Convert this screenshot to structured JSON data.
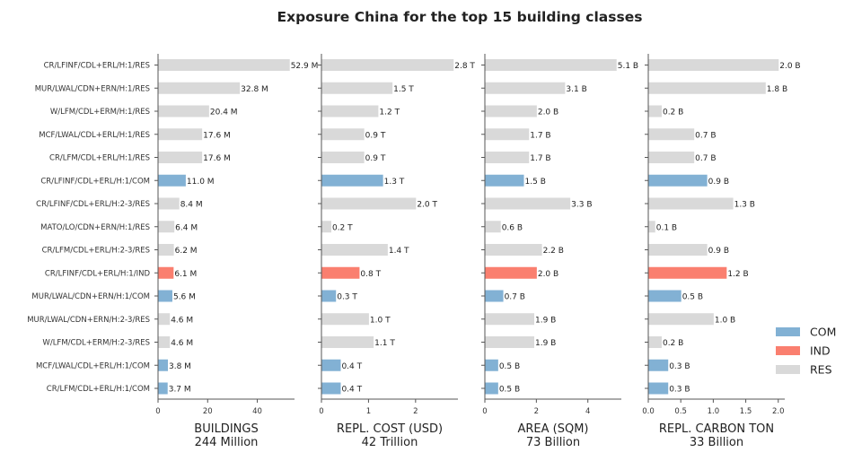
{
  "title": "Exposure China for the top 15 building classes",
  "colors": {
    "COM": "#82b1d4",
    "IND": "#fa7f6f",
    "RES": "#d9d9d9"
  },
  "legend": {
    "placement": "right",
    "items": [
      {
        "key": "COM",
        "label": "COM"
      },
      {
        "key": "IND",
        "label": "IND"
      },
      {
        "key": "RES",
        "label": "RES"
      }
    ]
  },
  "chart_data": {
    "type": "bar",
    "orientation": "horizontal",
    "categories": [
      "CR/LFINF/CDL+ERL/H:1/RES",
      "MUR/LWAL/CDN+ERN/H:1/RES",
      "W/LFM/CDL+ERM/H:1/RES",
      "MCF/LWAL/CDL+ERL/H:1/RES",
      "CR/LFM/CDL+ERL/H:1/RES",
      "CR/LFINF/CDL+ERL/H:1/COM",
      "CR/LFINF/CDL+ERL/H:2-3/RES",
      "MATO/LO/CDN+ERN/H:1/RES",
      "CR/LFM/CDL+ERL/H:2-3/RES",
      "CR/LFINF/CDL+ERL/H:1/IND",
      "MUR/LWAL/CDN+ERN/H:1/COM",
      "MUR/LWAL/CDN+ERN/H:2-3/RES",
      "W/LFM/CDL+ERM/H:2-3/RES",
      "MCF/LWAL/CDL+ERL/H:1/COM",
      "CR/LFM/CDL+ERL/H:1/COM"
    ],
    "occupancy": [
      "RES",
      "RES",
      "RES",
      "RES",
      "RES",
      "COM",
      "RES",
      "RES",
      "RES",
      "IND",
      "COM",
      "RES",
      "RES",
      "COM",
      "COM"
    ],
    "panels": [
      {
        "xlabel": "BUILDINGS",
        "total": "244 Million",
        "xlim": [
          0,
          55
        ],
        "ticks": [
          0,
          20,
          40
        ],
        "tick_labels": [
          "0",
          "20",
          "40"
        ],
        "values": [
          52.9,
          32.8,
          20.4,
          17.6,
          17.6,
          11.0,
          8.4,
          6.4,
          6.2,
          6.1,
          5.6,
          4.6,
          4.6,
          3.8,
          3.7
        ],
        "labels": [
          "52.9 M",
          "32.8 M",
          "20.4 M",
          "17.6 M",
          "17.6 M",
          "11.0 M",
          "8.4 M",
          "6.4 M",
          "6.2 M",
          "6.1 M",
          "5.6 M",
          "4.6 M",
          "4.6 M",
          "3.8 M",
          "3.7 M"
        ]
      },
      {
        "xlabel": "REPL. COST (USD)",
        "total": "42 Trillion",
        "xlim": [
          0,
          2.9
        ],
        "ticks": [
          0,
          1,
          2
        ],
        "tick_labels": [
          "0",
          "1",
          "2"
        ],
        "values": [
          2.8,
          1.5,
          1.2,
          0.9,
          0.9,
          1.3,
          2.0,
          0.2,
          1.4,
          0.8,
          0.3,
          1.0,
          1.1,
          0.4,
          0.4
        ],
        "labels": [
          "2.8 T",
          "1.5 T",
          "1.2 T",
          "0.9 T",
          "0.9 T",
          "1.3 T",
          "2.0 T",
          "0.2 T",
          "1.4 T",
          "0.8 T",
          "0.3 T",
          "1.0 T",
          "1.1 T",
          "0.4 T",
          "0.4 T"
        ]
      },
      {
        "xlabel": "AREA (SQM)",
        "total": "73 Billion",
        "xlim": [
          0,
          5.3
        ],
        "ticks": [
          0,
          2,
          4
        ],
        "tick_labels": [
          "0",
          "2",
          "4"
        ],
        "values": [
          5.1,
          3.1,
          2.0,
          1.7,
          1.7,
          1.5,
          3.3,
          0.6,
          2.2,
          2.0,
          0.7,
          1.9,
          1.9,
          0.5,
          0.5
        ],
        "labels": [
          "5.1 B",
          "3.1 B",
          "2.0 B",
          "1.7 B",
          "1.7 B",
          "1.5 B",
          "3.3 B",
          "0.6 B",
          "2.2 B",
          "2.0 B",
          "0.7 B",
          "1.9 B",
          "1.9 B",
          "0.5 B",
          "0.5 B"
        ]
      },
      {
        "xlabel": "REPL. CARBON TON",
        "total": "33 Billion",
        "xlim": [
          0,
          2.1
        ],
        "ticks": [
          0,
          0.5,
          1.0,
          1.5,
          2.0
        ],
        "tick_labels": [
          "0.0",
          "0.5",
          "1.0",
          "1.5",
          "2.0"
        ],
        "values": [
          2.0,
          1.8,
          0.2,
          0.7,
          0.7,
          0.9,
          1.3,
          0.1,
          0.9,
          1.2,
          0.5,
          1.0,
          0.2,
          0.3,
          0.3
        ],
        "labels": [
          "2.0 B",
          "1.8 B",
          "0.2 B",
          "0.7 B",
          "0.7 B",
          "0.9 B",
          "1.3 B",
          "0.1 B",
          "0.9 B",
          "1.2 B",
          "0.5 B",
          "1.0 B",
          "0.2 B",
          "0.3 B",
          "0.3 B"
        ]
      }
    ]
  }
}
